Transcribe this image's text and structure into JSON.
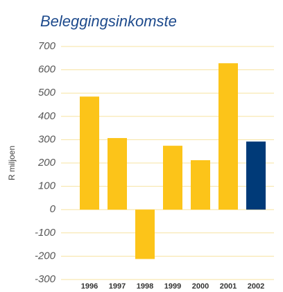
{
  "chart_data": {
    "type": "bar",
    "title": "Beleggingsinkomste",
    "y_label": "R miljoen",
    "categories": [
      "1996",
      "1997",
      "1998",
      "1999",
      "2000",
      "2001",
      "2002"
    ],
    "values": [
      485,
      307,
      -212,
      274,
      212,
      628,
      292
    ],
    "colors": [
      "#fcc419",
      "#fcc419",
      "#fcc419",
      "#fcc419",
      "#fcc419",
      "#fcc419",
      "#003a78"
    ],
    "ylim": [
      -300,
      700
    ],
    "yticks": [
      -300,
      -200,
      -100,
      0,
      100,
      200,
      300,
      400,
      500,
      600,
      700
    ],
    "grid": true
  }
}
